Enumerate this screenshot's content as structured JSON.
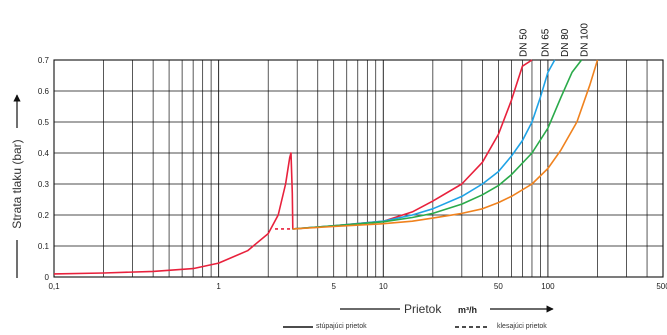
{
  "chart_data": {
    "type": "line",
    "x_scale": "log",
    "xlim": [
      0.1,
      500
    ],
    "ylim": [
      0,
      0.7
    ],
    "grid": true,
    "ylabel": "Strata tlaku (bar)",
    "xlabel": "Prietok",
    "xunit": "m³/h",
    "x_ticks": [
      {
        "value": 0.1,
        "label": "0,1"
      },
      {
        "value": 1,
        "label": "1"
      },
      {
        "value": 5,
        "label": "5"
      },
      {
        "value": 10,
        "label": "10"
      },
      {
        "value": 50,
        "label": "50"
      },
      {
        "value": 100,
        "label": "100"
      },
      {
        "value": 500,
        "label": "500"
      }
    ],
    "y_ticks": [
      {
        "value": 0,
        "label": "0"
      },
      {
        "value": 0.1,
        "label": "0.1"
      },
      {
        "value": 0.2,
        "label": "0.2"
      },
      {
        "value": 0.3,
        "label": "0.3"
      },
      {
        "value": 0.4,
        "label": "0.4"
      },
      {
        "value": 0.5,
        "label": "0.5"
      },
      {
        "value": 0.6,
        "label": "0.6"
      },
      {
        "value": 0.7,
        "label": "0.7"
      }
    ],
    "series": [
      {
        "name": "DN 50",
        "color": "#e8213c",
        "label_x": 70,
        "x": [
          0.1,
          0.2,
          0.4,
          0.7,
          1,
          1.5,
          2,
          2.3,
          2.55,
          2.7,
          2.75,
          2.8,
          2.82,
          5,
          10,
          15,
          20,
          30,
          40,
          50,
          60,
          70,
          80
        ],
        "y": [
          0.01,
          0.013,
          0.018,
          0.027,
          0.045,
          0.085,
          0.14,
          0.2,
          0.3,
          0.385,
          0.4,
          0.27,
          0.155,
          0.165,
          0.18,
          0.21,
          0.245,
          0.3,
          0.37,
          0.46,
          0.57,
          0.68,
          0.72
        ]
      },
      {
        "name": "DN 65",
        "color": "#1fa3e6",
        "label_x": 95,
        "x": [
          2.82,
          5,
          10,
          15,
          20,
          30,
          40,
          50,
          60,
          70,
          80,
          90,
          100,
          110
        ],
        "y": [
          0.155,
          0.165,
          0.18,
          0.2,
          0.22,
          0.26,
          0.3,
          0.34,
          0.39,
          0.44,
          0.5,
          0.58,
          0.66,
          0.72
        ]
      },
      {
        "name": "DN 80",
        "color": "#2aaa4a",
        "label_x": 125,
        "x": [
          2.82,
          5,
          10,
          15,
          20,
          30,
          40,
          50,
          60,
          80,
          100,
          120,
          140,
          160
        ],
        "y": [
          0.155,
          0.165,
          0.178,
          0.192,
          0.205,
          0.235,
          0.265,
          0.295,
          0.33,
          0.4,
          0.48,
          0.58,
          0.66,
          0.72
        ]
      },
      {
        "name": "DN 100",
        "color": "#f0821e",
        "label_x": 165,
        "x": [
          2.82,
          5,
          10,
          15,
          20,
          30,
          40,
          50,
          60,
          80,
          100,
          120,
          150,
          180,
          200
        ],
        "y": [
          0.155,
          0.163,
          0.172,
          0.18,
          0.19,
          0.205,
          0.22,
          0.24,
          0.26,
          0.3,
          0.35,
          0.41,
          0.5,
          0.62,
          0.72
        ]
      }
    ],
    "dashed_segment": {
      "color": "#e8213c",
      "x": [
        2.2,
        2.82
      ],
      "y": [
        0.155,
        0.155
      ]
    },
    "legend": {
      "placement": "bottom",
      "items": [
        {
          "label": "stúpajúci prietok",
          "style": "solid"
        },
        {
          "label": "klesajúci prietok",
          "style": "dashed"
        }
      ]
    }
  }
}
